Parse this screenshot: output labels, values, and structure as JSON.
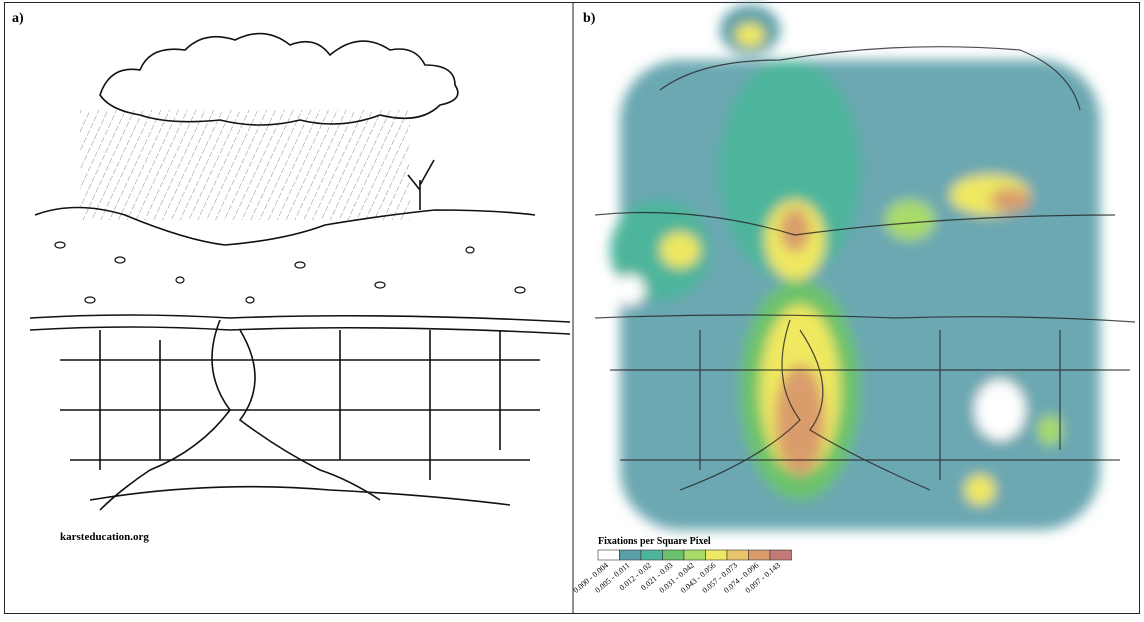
{
  "panel_a": {
    "label": "a)",
    "credit": "karsteducation.org"
  },
  "panel_b": {
    "label": "b)",
    "legend": {
      "title": "Fixations per Square Pixel",
      "bins": [
        {
          "label": "0.000 - 0.004",
          "color": "#ffffff"
        },
        {
          "label": "0.005 - 0.011",
          "color": "#5b9fa8"
        },
        {
          "label": "0.012 - 0.02",
          "color": "#4db59b"
        },
        {
          "label": "0.021 - 0.03",
          "color": "#6cc26c"
        },
        {
          "label": "0.031 - 0.042",
          "color": "#a9db6a"
        },
        {
          "label": "0.043 - 0.056",
          "color": "#efe861"
        },
        {
          "label": "0.057 - 0.073",
          "color": "#e9c46b"
        },
        {
          "label": "0.074 - 0.096",
          "color": "#d99d6c"
        },
        {
          "label": "0.097 - 0.143",
          "color": "#c27b78"
        }
      ]
    }
  }
}
